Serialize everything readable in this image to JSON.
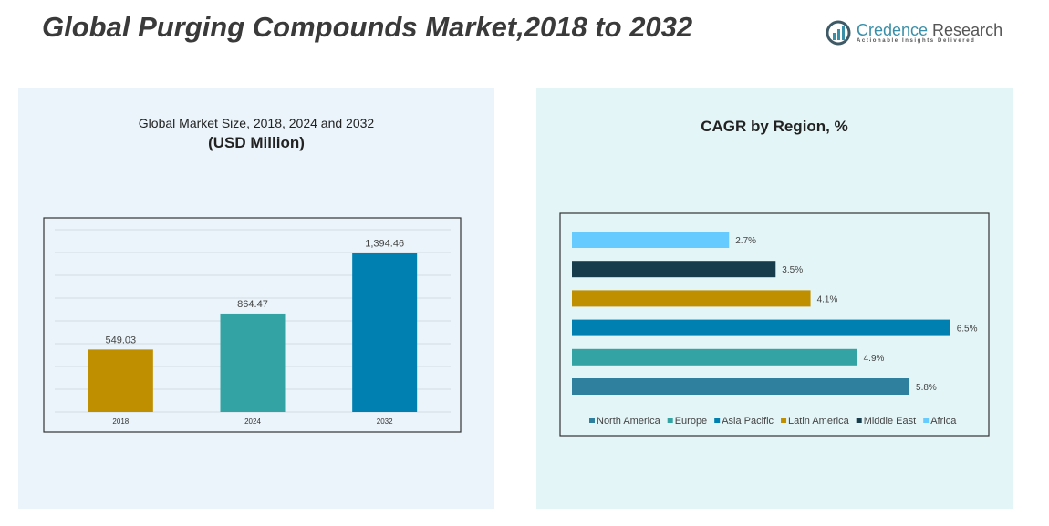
{
  "title": "Global Purging Compounds Market,2018 to 2032",
  "logo": {
    "name_a": "Credence",
    "name_b": " Research",
    "tagline": "Actionable Insights Delivered"
  },
  "colors": {
    "gold": "#c08f00",
    "teal": "#33a3a3",
    "blue": "#0080b0",
    "navy": "#173d4d",
    "sky": "#66ccff",
    "steel": "#2f7f9e"
  },
  "chart_data": [
    {
      "type": "bar",
      "title": "Global Market Size, 2018, 2024 and 2032",
      "subtitle": "(USD Million)",
      "categories": [
        "2018",
        "2024",
        "2032"
      ],
      "values": [
        549.03,
        864.47,
        1394.46
      ],
      "value_labels": [
        "549.03",
        "864.47",
        "1,394.46"
      ],
      "bar_colors": [
        "#c08f00",
        "#33a3a3",
        "#0080b0"
      ],
      "ylim": [
        0,
        1600
      ],
      "grid": true,
      "grid_step": 200
    },
    {
      "type": "bar",
      "orientation": "horizontal",
      "title": "CAGR by Region, %",
      "categories": [
        "Africa",
        "Middle East",
        "Latin America",
        "Asia Pacific",
        "Europe",
        "North America"
      ],
      "values": [
        2.7,
        3.5,
        4.1,
        6.5,
        4.9,
        5.8
      ],
      "value_labels": [
        "2.7%",
        "3.5%",
        "4.1%",
        "6.5%",
        "4.9%",
        "5.8%"
      ],
      "bar_colors": [
        "#66ccff",
        "#173d4d",
        "#c08f00",
        "#0080b0",
        "#33a3a3",
        "#2f7f9e"
      ],
      "legend": [
        {
          "name": "North America",
          "color": "#2f7f9e"
        },
        {
          "name": "Europe",
          "color": "#33a3a3"
        },
        {
          "name": "Asia Pacific",
          "color": "#0080b0"
        },
        {
          "name": "Latin America",
          "color": "#c08f00"
        },
        {
          "name": "Middle East",
          "color": "#173d4d"
        },
        {
          "name": "Africa",
          "color": "#66ccff"
        }
      ],
      "legend_position": "bottom",
      "grid": false
    }
  ]
}
